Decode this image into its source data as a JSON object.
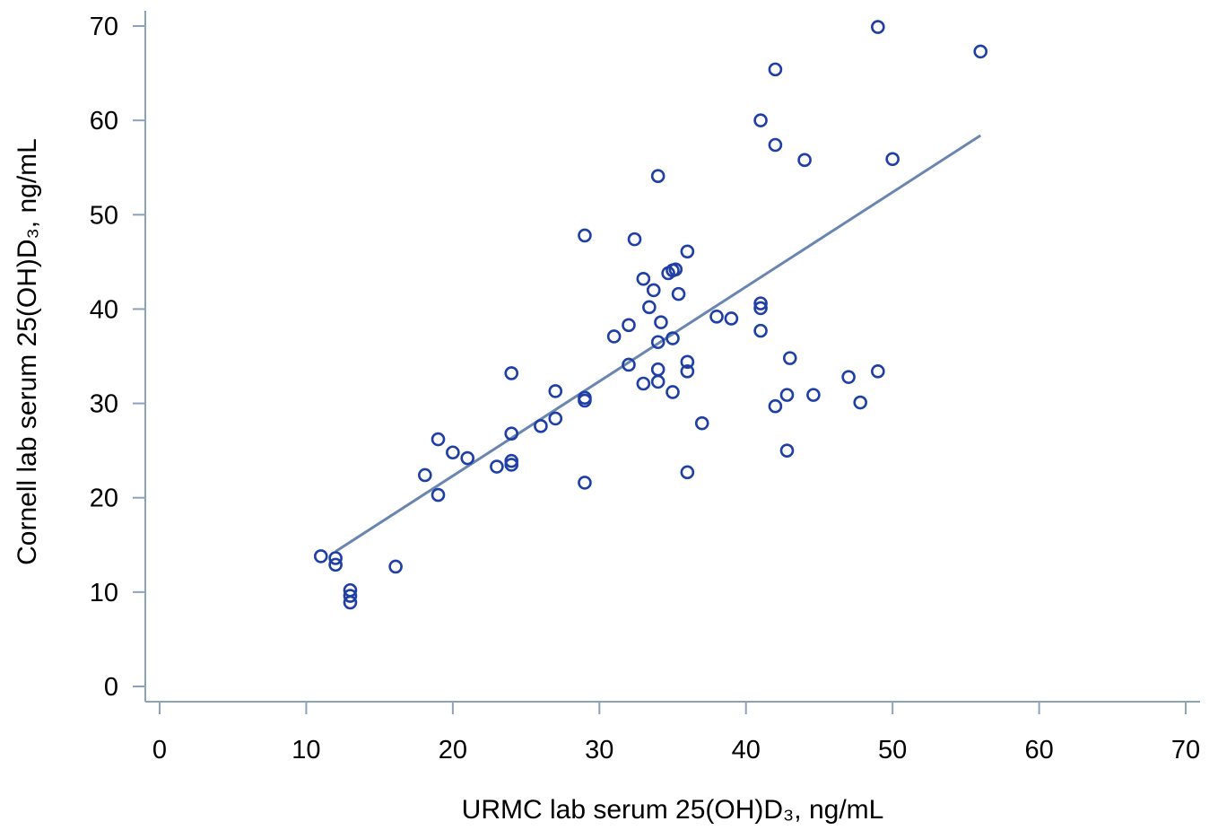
{
  "chart_data": {
    "type": "scatter",
    "xlabel": "URMC lab serum 25(OH)D₃, ng/mL",
    "ylabel": "Cornell lab serum 25(OH)D₃, ng/mL",
    "xlim": [
      0,
      70
    ],
    "ylim": [
      0,
      70
    ],
    "x_ticks": [
      0,
      10,
      20,
      30,
      40,
      50,
      60,
      70
    ],
    "y_ticks": [
      0,
      10,
      20,
      30,
      40,
      50,
      60,
      70
    ],
    "grid": false,
    "colors": {
      "points": "#1f3fa6",
      "fit_line": "#6a86b0",
      "axis": "#8ea1bb"
    },
    "points": [
      [
        11,
        13.8
      ],
      [
        12,
        13.6
      ],
      [
        12,
        12.9
      ],
      [
        13,
        10.2
      ],
      [
        13,
        9.6
      ],
      [
        13,
        8.9
      ],
      [
        16.1,
        12.7
      ],
      [
        18.1,
        22.4
      ],
      [
        19,
        26.2
      ],
      [
        19,
        20.3
      ],
      [
        20,
        24.8
      ],
      [
        21,
        24.2
      ],
      [
        23,
        23.3
      ],
      [
        24,
        33.2
      ],
      [
        24,
        26.8
      ],
      [
        24,
        23.9
      ],
      [
        24,
        23.5
      ],
      [
        26,
        27.6
      ],
      [
        27,
        31.3
      ],
      [
        27,
        28.4
      ],
      [
        29,
        47.8
      ],
      [
        29,
        30.6
      ],
      [
        29,
        30.3
      ],
      [
        29,
        21.6
      ],
      [
        31,
        37.1
      ],
      [
        32,
        38.3
      ],
      [
        32,
        34.1
      ],
      [
        32.4,
        47.4
      ],
      [
        33,
        43.2
      ],
      [
        33,
        32.1
      ],
      [
        33.4,
        40.2
      ],
      [
        33.7,
        42.0
      ],
      [
        34,
        54.1
      ],
      [
        34,
        36.5
      ],
      [
        34,
        33.6
      ],
      [
        34,
        32.3
      ],
      [
        34.2,
        38.6
      ],
      [
        34.7,
        43.8
      ],
      [
        35,
        44.1
      ],
      [
        35.2,
        44.2
      ],
      [
        35,
        36.9
      ],
      [
        35,
        31.2
      ],
      [
        35.4,
        41.6
      ],
      [
        36,
        46.1
      ],
      [
        36,
        34.4
      ],
      [
        36,
        33.4
      ],
      [
        36,
        22.7
      ],
      [
        37,
        27.9
      ],
      [
        38,
        39.2
      ],
      [
        39,
        39.0
      ],
      [
        41,
        60.0
      ],
      [
        41,
        40.6
      ],
      [
        41,
        40.1
      ],
      [
        41,
        37.7
      ],
      [
        42,
        65.4
      ],
      [
        42,
        57.4
      ],
      [
        42,
        29.7
      ],
      [
        42.8,
        30.9
      ],
      [
        43,
        34.8
      ],
      [
        42.8,
        25.0
      ],
      [
        44,
        55.8
      ],
      [
        44.6,
        30.9
      ],
      [
        47,
        32.8
      ],
      [
        47.8,
        30.1
      ],
      [
        49,
        69.9
      ],
      [
        49,
        33.4
      ],
      [
        50,
        55.9
      ],
      [
        56,
        67.3
      ]
    ],
    "fit_line": {
      "x": [
        12,
        56
      ],
      "y": [
        14.3,
        58.4
      ]
    }
  }
}
